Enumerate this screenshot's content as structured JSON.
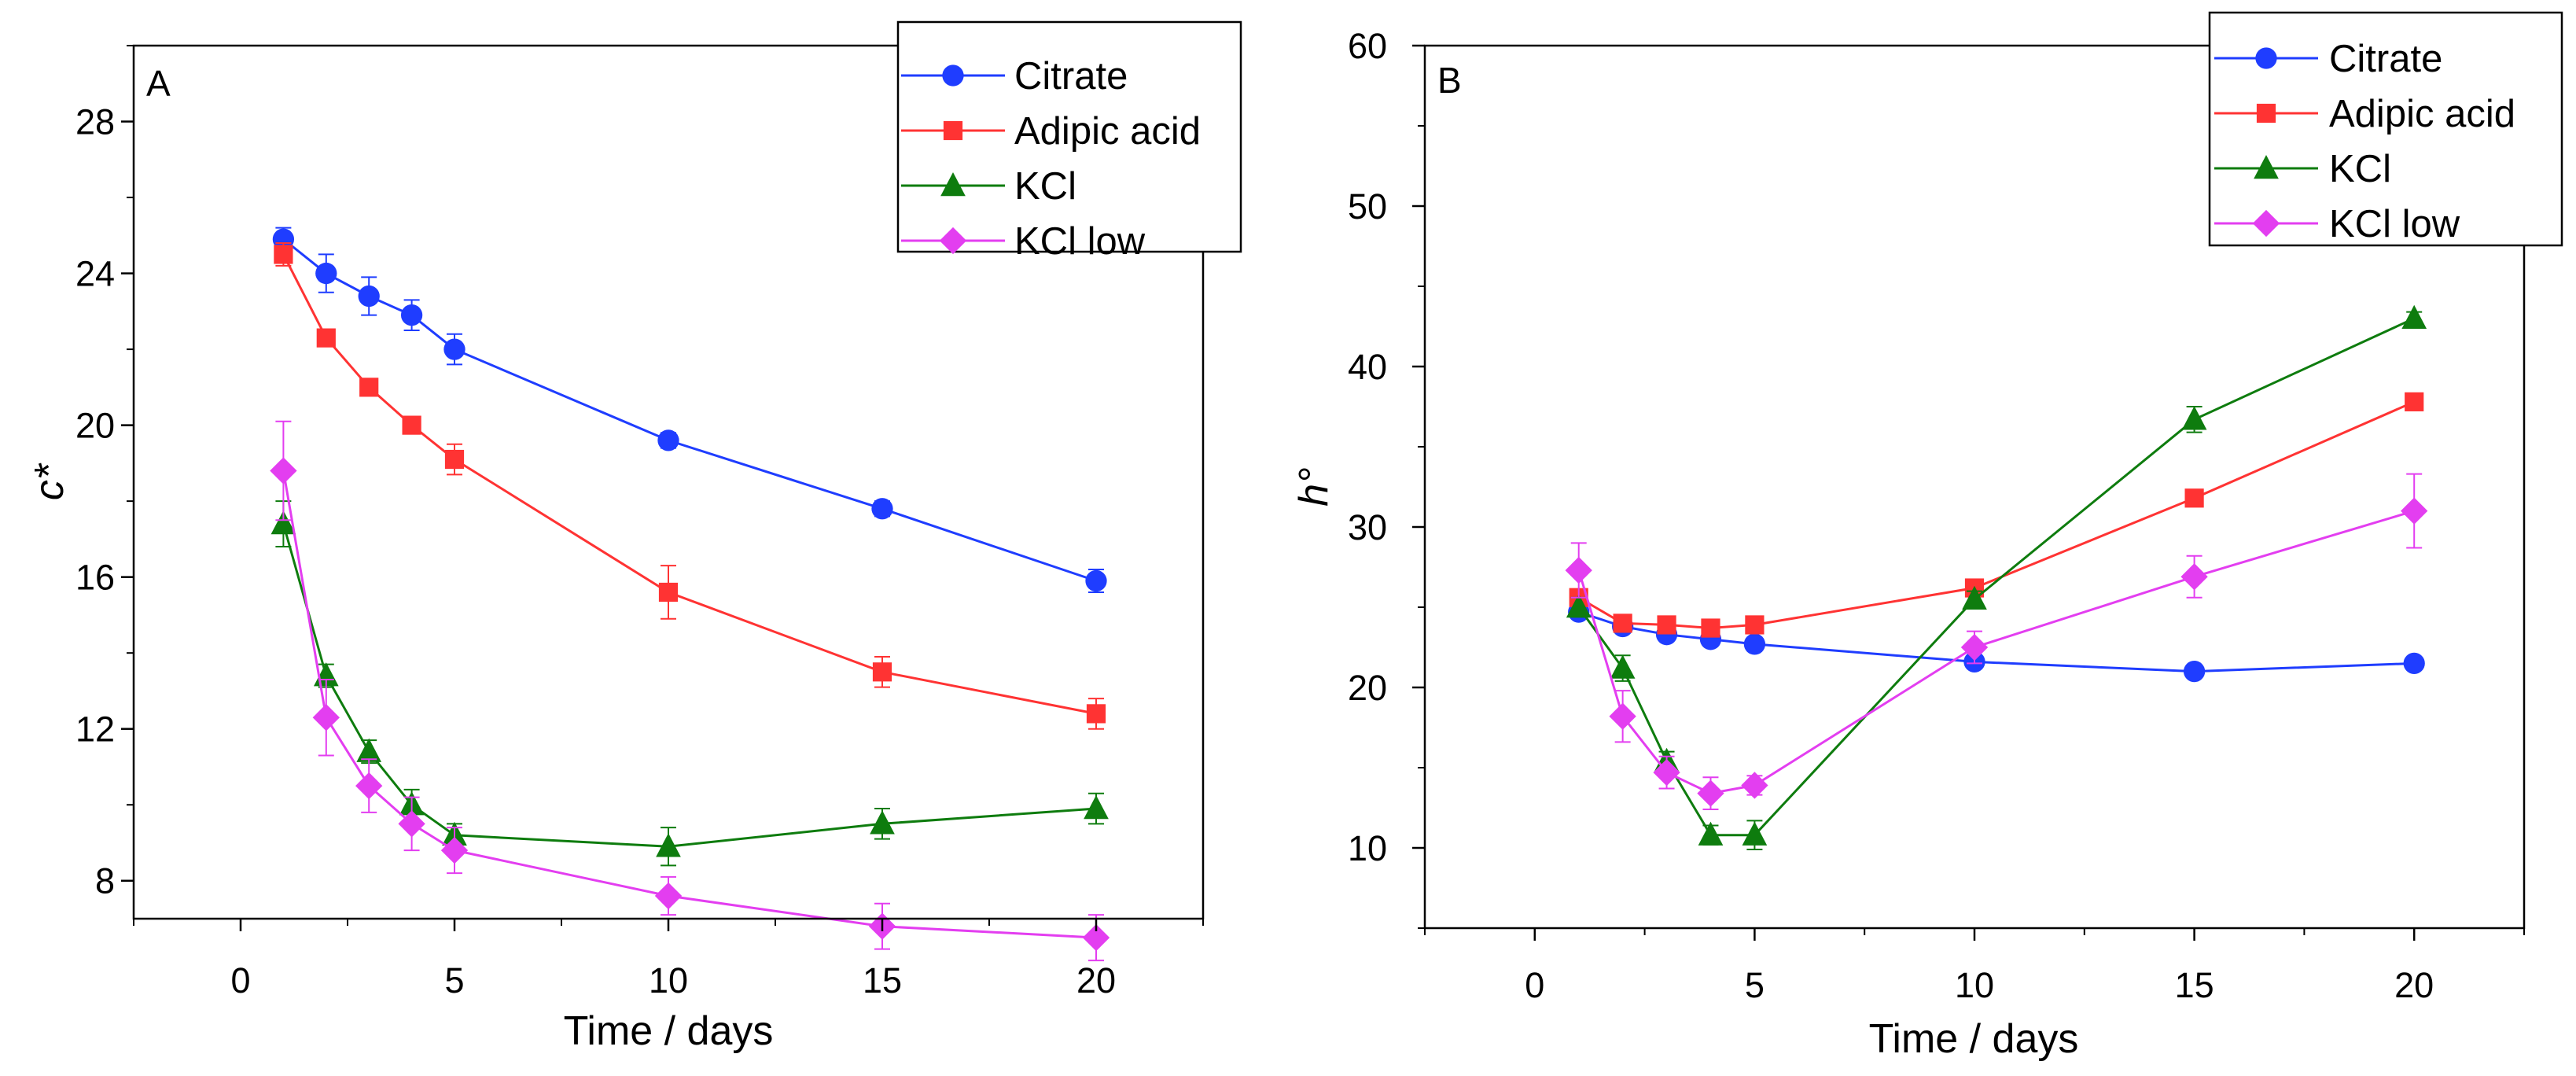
{
  "chart_data": [
    {
      "type": "line",
      "panel_label": "A",
      "xlabel": "Time / days",
      "ylabel": "c*",
      "xlim": [
        -2.5,
        22.5
      ],
      "ylim": [
        7.0,
        30.0
      ],
      "xticks": [
        0,
        5,
        10,
        15,
        20
      ],
      "yticks": [
        8,
        12,
        16,
        20,
        24,
        28
      ],
      "legend_position": "top-right",
      "grid": false,
      "x": [
        1,
        2,
        3,
        4,
        5,
        10,
        15,
        20
      ],
      "series": [
        {
          "name": "Citrate",
          "color": "#1f3dff",
          "marker": "circle",
          "values": [
            24.9,
            24.0,
            23.4,
            22.9,
            22.0,
            19.6,
            17.8,
            15.9
          ],
          "errors": [
            0.3,
            0.5,
            0.5,
            0.4,
            0.4,
            0.2,
            0.2,
            0.3
          ]
        },
        {
          "name": "Adipic acid",
          "color": "#ff3333",
          "marker": "square",
          "values": [
            24.5,
            22.3,
            21.0,
            20.0,
            19.1,
            15.6,
            13.5,
            12.4
          ],
          "errors": [
            0.3,
            0.2,
            0.2,
            0.2,
            0.4,
            0.7,
            0.4,
            0.4
          ]
        },
        {
          "name": "KCl",
          "color": "#0e7c0e",
          "marker": "triangle",
          "values": [
            17.4,
            13.4,
            11.4,
            10.0,
            9.2,
            8.9,
            9.5,
            9.9
          ],
          "errors": [
            0.6,
            0.3,
            0.3,
            0.4,
            0.3,
            0.5,
            0.4,
            0.4
          ]
        },
        {
          "name": "KCl low",
          "color": "#e33ef0",
          "marker": "diamond",
          "values": [
            18.8,
            12.3,
            10.5,
            9.5,
            8.8,
            7.6,
            6.8,
            6.5
          ],
          "errors": [
            1.3,
            1.0,
            0.7,
            0.7,
            0.6,
            0.5,
            0.6,
            0.6
          ]
        }
      ]
    },
    {
      "type": "line",
      "panel_label": "B",
      "xlabel": "Time / days",
      "ylabel": "h°",
      "xlim": [
        -2.5,
        22.5
      ],
      "ylim": [
        5.0,
        60.0
      ],
      "xticks": [
        0,
        5,
        10,
        15,
        20
      ],
      "yticks": [
        10,
        20,
        30,
        40,
        50,
        60
      ],
      "legend_position": "top-right",
      "grid": false,
      "x": [
        1,
        2,
        3,
        4,
        5,
        10,
        15,
        20
      ],
      "series": [
        {
          "name": "Citrate",
          "color": "#1f3dff",
          "marker": "circle",
          "values": [
            24.7,
            23.8,
            23.3,
            23.0,
            22.7,
            21.6,
            21.0,
            21.5
          ],
          "errors": [
            0.3,
            0.3,
            0.3,
            0.3,
            0.3,
            0.3,
            0.3,
            0.3
          ]
        },
        {
          "name": "Adipic acid",
          "color": "#ff3333",
          "marker": "square",
          "values": [
            25.6,
            24.0,
            23.9,
            23.7,
            23.9,
            26.2,
            31.8,
            37.8
          ],
          "errors": [
            0.3,
            0.3,
            0.3,
            0.3,
            0.3,
            0.4,
            0.4,
            0.4
          ]
        },
        {
          "name": "KCl",
          "color": "#0e7c0e",
          "marker": "triangle",
          "values": [
            25.0,
            21.2,
            15.4,
            10.8,
            10.8,
            25.5,
            36.7,
            43.0
          ],
          "errors": [
            0.6,
            0.8,
            0.6,
            0.6,
            0.9,
            0.5,
            0.8,
            0.4
          ]
        },
        {
          "name": "KCl low",
          "color": "#e33ef0",
          "marker": "diamond",
          "values": [
            27.3,
            18.2,
            14.7,
            13.4,
            13.9,
            22.5,
            26.9,
            31.0
          ],
          "errors": [
            1.7,
            1.6,
            1.0,
            1.0,
            0.6,
            1.0,
            1.3,
            2.3
          ]
        }
      ]
    }
  ]
}
